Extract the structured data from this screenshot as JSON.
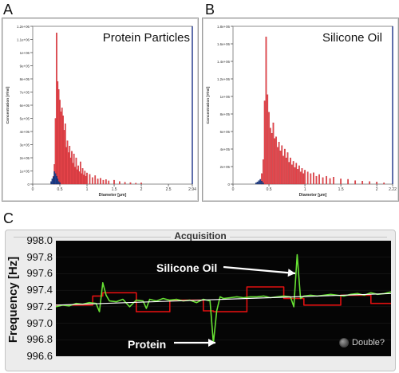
{
  "panels": {
    "a_letter": "A",
    "b_letter": "B",
    "c_letter": "C"
  },
  "chart_data": [
    {
      "type": "bar",
      "title": "Protein Particles",
      "xlabel": "Diameter [µm]",
      "ylabel": "Concentration [#/ml]",
      "x_ticks": [
        "0",
        "0.5",
        "1",
        "1.5",
        "2",
        "2.5",
        "2.94"
      ],
      "y_ticks": [
        "0",
        "1e+05",
        "2e+05",
        "3e+05",
        "4e+05",
        "5e+05",
        "6e+05",
        "7e+05",
        "8e+05",
        "9e+05",
        "1e+06",
        "1.1e+06",
        "1.2e+06"
      ],
      "xlim": [
        0,
        2.94
      ],
      "ylim": [
        0,
        1200000
      ],
      "colors": {
        "red": "#e8454b",
        "blue": "#1f3f8f"
      },
      "series": [
        {
          "color": "red",
          "x": [
            0.38,
            0.4,
            0.42,
            0.44,
            0.46,
            0.48,
            0.5,
            0.52,
            0.54,
            0.56,
            0.58,
            0.6,
            0.62,
            0.64,
            0.66,
            0.68,
            0.7,
            0.72,
            0.74,
            0.76,
            0.78,
            0.8,
            0.82,
            0.84,
            0.86,
            0.88,
            0.9,
            0.92,
            0.94,
            0.96,
            0.98,
            1.0,
            1.05,
            1.1,
            1.15,
            1.2,
            1.25,
            1.3,
            1.35,
            1.4,
            1.5,
            1.6,
            1.7,
            1.8,
            1.9,
            2.0
          ],
          "values": [
            60000,
            150000,
            500000,
            1150000,
            780000,
            720000,
            640000,
            550000,
            580000,
            520000,
            410000,
            460000,
            280000,
            330000,
            240000,
            290000,
            200000,
            250000,
            160000,
            230000,
            130000,
            200000,
            110000,
            140000,
            95000,
            170000,
            80000,
            120000,
            70000,
            100000,
            60000,
            85000,
            75000,
            50000,
            65000,
            40000,
            45000,
            30000,
            35000,
            25000,
            30000,
            20000,
            15000,
            12000,
            8000,
            10000
          ]
        },
        {
          "color": "blue",
          "x": [
            0.34,
            0.36,
            0.38,
            0.4,
            0.42,
            0.44,
            0.46,
            0.48,
            0.5
          ],
          "values": [
            20000,
            40000,
            55000,
            95000,
            80000,
            60000,
            40000,
            20000,
            10000
          ]
        }
      ]
    },
    {
      "type": "bar",
      "title": "Silicone Oil",
      "xlabel": "Diameter [µm]",
      "ylabel": "Concentration [#/ml]",
      "x_ticks": [
        "0",
        "0.5",
        "1",
        "1.5",
        "2",
        "2.22"
      ],
      "y_ticks": [
        "0",
        "2e+05",
        "4e+05",
        "6e+05",
        "8e+05",
        "1e+06",
        "1.2e+06",
        "1.4e+06",
        "1.6e+06",
        "1.8e+06"
      ],
      "xlim": [
        0,
        2.22
      ],
      "ylim": [
        0,
        1800000
      ],
      "colors": {
        "red": "#e8454b",
        "blue": "#1f3f8f"
      },
      "series": [
        {
          "color": "red",
          "x": [
            0.4,
            0.42,
            0.44,
            0.46,
            0.48,
            0.5,
            0.52,
            0.54,
            0.56,
            0.58,
            0.6,
            0.62,
            0.64,
            0.66,
            0.68,
            0.7,
            0.72,
            0.74,
            0.76,
            0.78,
            0.8,
            0.82,
            0.84,
            0.86,
            0.88,
            0.9,
            0.92,
            0.94,
            0.96,
            0.98,
            1.0,
            1.04,
            1.08,
            1.12,
            1.16,
            1.2,
            1.25,
            1.3,
            1.35,
            1.4,
            1.5,
            1.6,
            1.7,
            1.8,
            1.9,
            2.0,
            2.1
          ],
          "values": [
            120000,
            280000,
            950000,
            1680000,
            1020000,
            820000,
            640000,
            580000,
            700000,
            520000,
            540000,
            420000,
            480000,
            380000,
            440000,
            320000,
            400000,
            300000,
            360000,
            250000,
            300000,
            220000,
            260000,
            190000,
            240000,
            170000,
            210000,
            140000,
            180000,
            120000,
            160000,
            140000,
            120000,
            130000,
            90000,
            110000,
            75000,
            90000,
            65000,
            80000,
            60000,
            55000,
            40000,
            35000,
            30000,
            25000,
            15000
          ]
        },
        {
          "color": "blue",
          "x": [
            0.32,
            0.34,
            0.36,
            0.38,
            0.4,
            0.42
          ],
          "values": [
            15000,
            25000,
            40000,
            55000,
            35000,
            15000
          ]
        }
      ]
    },
    {
      "type": "line",
      "title": "Acquisition",
      "ylabel": "Frequency [Hz]",
      "y_ticks": [
        "996.6",
        "996.8",
        "997.0",
        "997.2",
        "997.4",
        "997.6",
        "997.8",
        "998.0"
      ],
      "ylim": [
        996.6,
        998.0
      ],
      "colors": {
        "red": "#e01010",
        "green": "#66e033",
        "white": "#ffffff",
        "background": "#050505"
      },
      "series": [
        {
          "color": "red",
          "x": [
            0,
            4,
            8,
            11,
            14,
            18,
            21,
            24,
            27,
            31,
            34,
            37,
            41,
            44,
            47,
            51,
            54,
            57,
            61,
            64,
            66,
            68,
            70,
            72,
            74,
            76,
            79,
            82,
            85,
            88,
            91,
            94,
            97,
            100
          ],
          "y": [
            997.22,
            997.22,
            997.22,
            997.33,
            997.37,
            997.37,
            997.37,
            997.14,
            997.14,
            997.14,
            997.28,
            997.28,
            997.28,
            997.15,
            997.14,
            997.14,
            997.14,
            997.44,
            997.44,
            997.44,
            997.44,
            997.3,
            997.3,
            997.3,
            997.22,
            997.22,
            997.22,
            997.22,
            997.34,
            997.34,
            997.34,
            997.24,
            997.24,
            997.24
          ]
        },
        {
          "color": "green",
          "x": [
            0,
            2,
            4,
            6,
            8,
            10,
            12,
            13,
            14,
            15,
            16,
            18,
            20,
            22,
            24,
            26,
            27,
            28,
            30,
            32,
            34,
            36,
            38,
            40,
            42,
            44,
            46,
            47,
            48,
            49,
            50,
            52,
            54,
            56,
            58,
            60,
            62,
            64,
            66,
            68,
            70,
            71,
            72,
            73,
            74,
            76,
            78,
            80,
            82,
            84,
            86,
            88,
            90,
            92,
            94,
            96,
            98,
            100
          ],
          "y": [
            997.2,
            997.22,
            997.21,
            997.24,
            997.23,
            997.25,
            997.24,
            997.14,
            997.49,
            997.34,
            997.27,
            997.26,
            997.29,
            997.2,
            997.28,
            997.27,
            997.18,
            997.29,
            997.27,
            997.3,
            997.28,
            997.29,
            997.27,
            997.28,
            997.25,
            997.29,
            997.27,
            996.76,
            997.15,
            997.32,
            997.3,
            997.31,
            997.32,
            997.31,
            997.32,
            997.32,
            997.33,
            997.31,
            997.32,
            997.33,
            997.32,
            997.2,
            997.83,
            997.3,
            997.33,
            997.34,
            997.33,
            997.34,
            997.35,
            997.34,
            997.33,
            997.35,
            997.36,
            997.34,
            997.37,
            997.35,
            997.36,
            997.38
          ]
        },
        {
          "color": "white",
          "x": [
            0,
            100
          ],
          "y": [
            997.22,
            997.36
          ]
        }
      ],
      "annotations": [
        {
          "text": "Silicone Oil",
          "target_series": "green"
        },
        {
          "text": "Protein",
          "target_series": "green"
        }
      ],
      "indicator": {
        "label": "Double?"
      }
    }
  ]
}
